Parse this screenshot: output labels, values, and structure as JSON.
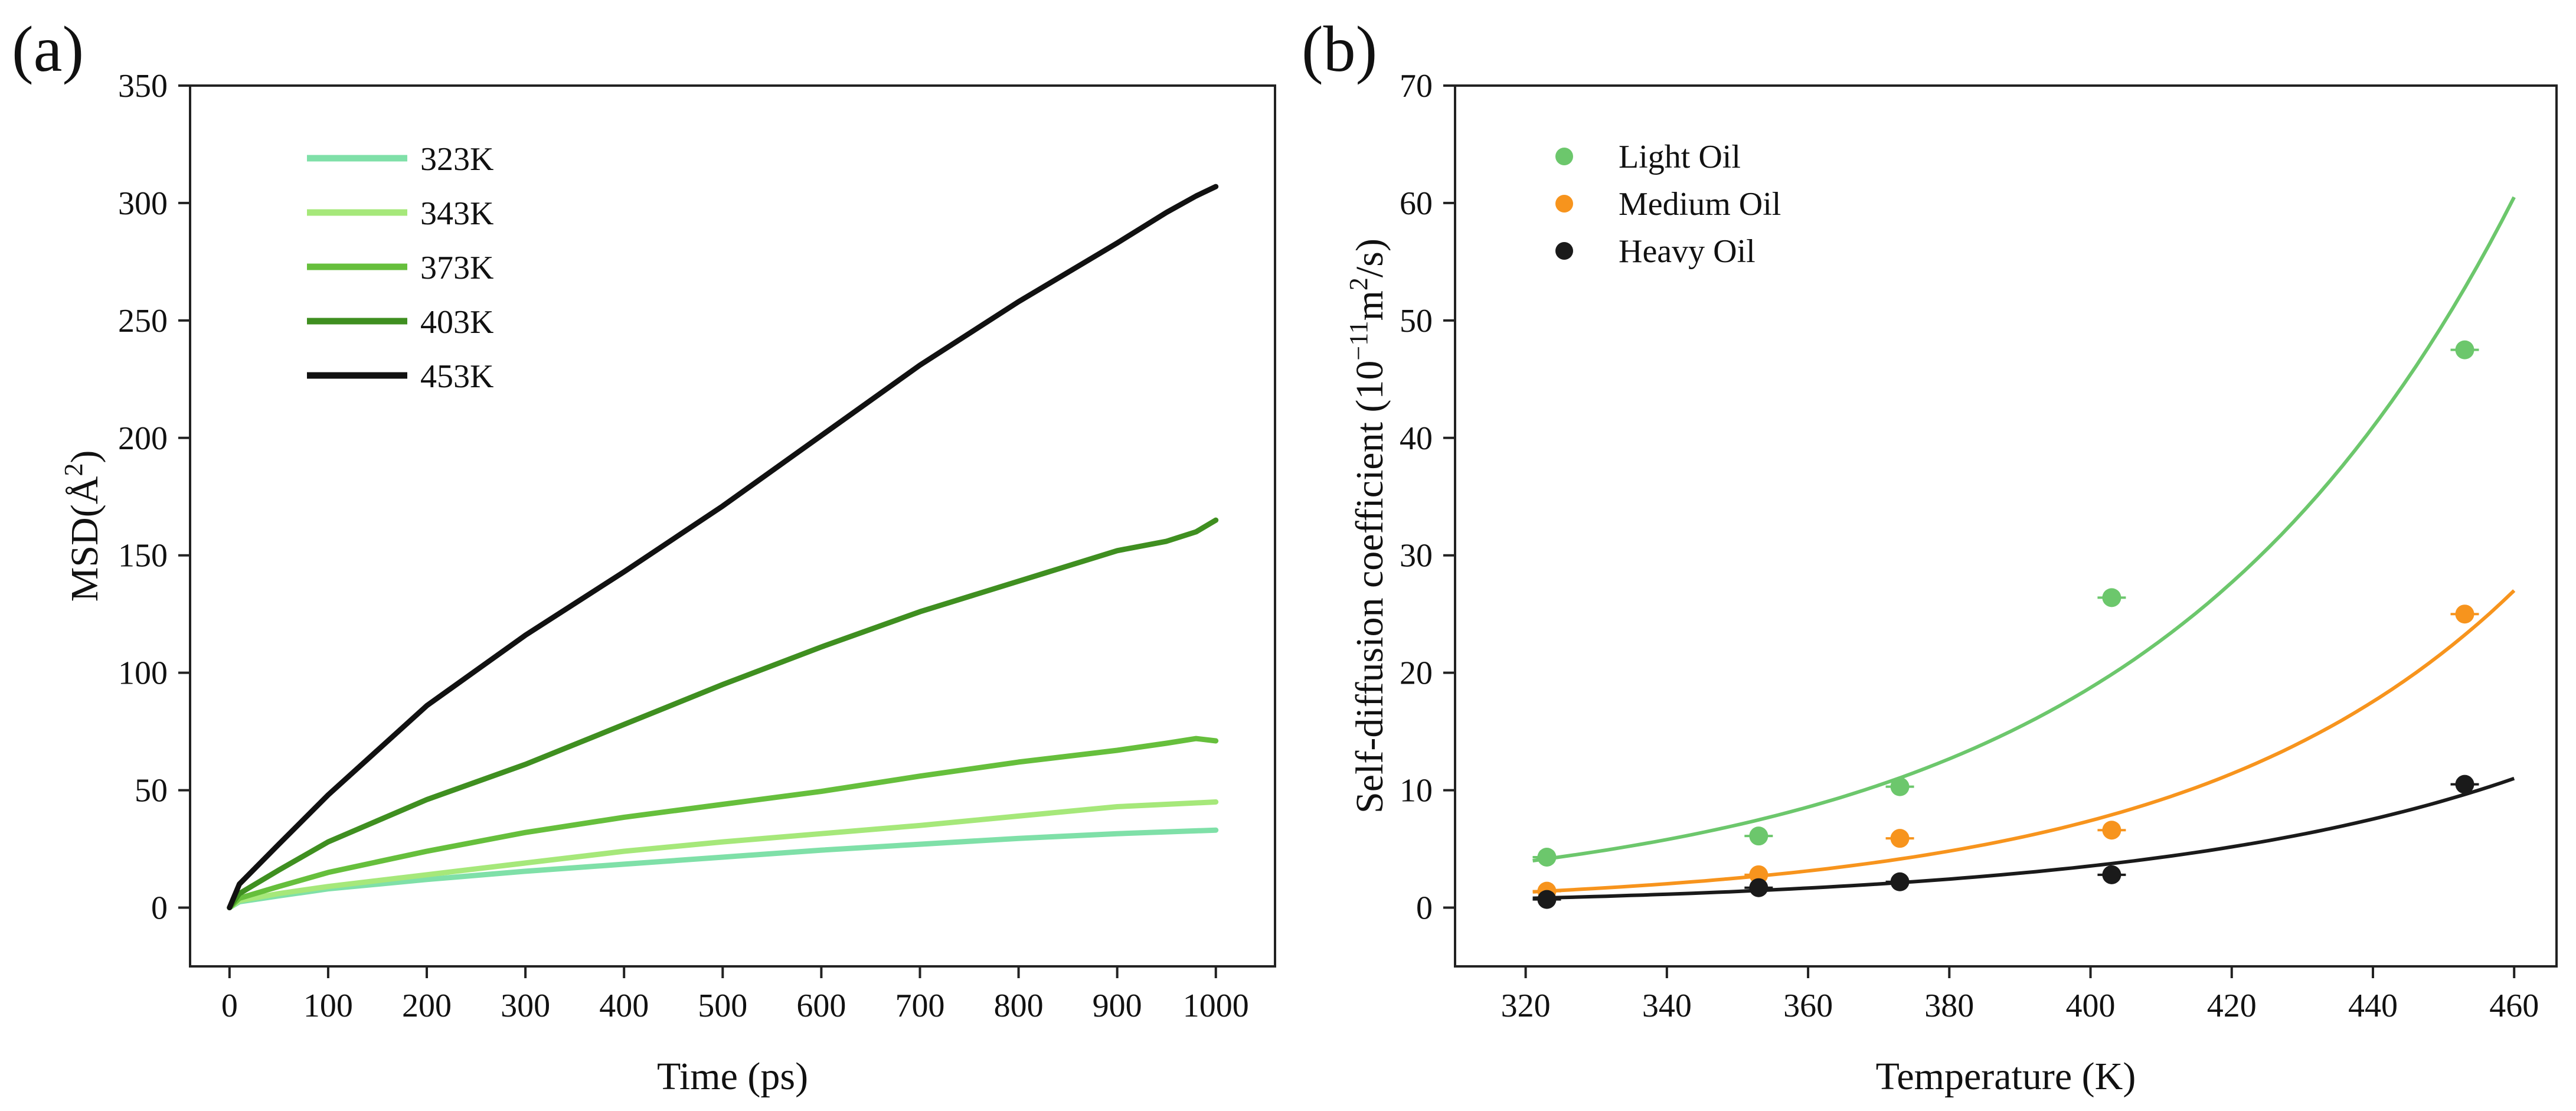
{
  "panels": {
    "a": {
      "label": "(a)"
    },
    "b": {
      "label": "(b)"
    }
  },
  "chart_data": [
    {
      "panel": "(a)",
      "type": "line",
      "title": "",
      "xlabel": "Time (ps)",
      "ylabel_text": "MSD(Å",
      "ylabel_sup": "2",
      "ylabel_tail": ")",
      "xlim": [
        -40,
        1060
      ],
      "ylim": [
        -25,
        350
      ],
      "xticks": [
        0,
        100,
        200,
        300,
        400,
        500,
        600,
        700,
        800,
        900,
        1000
      ],
      "yticks": [
        0,
        50,
        100,
        150,
        200,
        250,
        300,
        350
      ],
      "legend_position": "top-left",
      "series": [
        {
          "name": "323K",
          "color": "#7fe0a8",
          "x": [
            0,
            10,
            50,
            100,
            200,
            300,
            400,
            500,
            600,
            700,
            800,
            900,
            1000
          ],
          "y": [
            0,
            2.5,
            5,
            8,
            12,
            15.5,
            18.5,
            21.5,
            24.5,
            27,
            29.5,
            31.5,
            33
          ]
        },
        {
          "name": "343K",
          "color": "#a6e87a",
          "x": [
            0,
            10,
            50,
            100,
            200,
            300,
            400,
            500,
            600,
            700,
            800,
            900,
            1000
          ],
          "y": [
            0,
            3,
            6,
            9,
            14,
            19,
            24,
            28,
            31.5,
            35,
            39,
            43,
            45
          ]
        },
        {
          "name": "373K",
          "color": "#66bf3c",
          "x": [
            0,
            10,
            50,
            100,
            200,
            300,
            400,
            500,
            600,
            700,
            800,
            900,
            950,
            980,
            1000
          ],
          "y": [
            0,
            4,
            9,
            15,
            24,
            32,
            38.5,
            44,
            49.5,
            56,
            62,
            67,
            70,
            72,
            71
          ]
        },
        {
          "name": "403K",
          "color": "#3f8f20",
          "x": [
            0,
            10,
            50,
            100,
            200,
            300,
            400,
            500,
            600,
            700,
            800,
            900,
            950,
            980,
            1000
          ],
          "y": [
            0,
            6,
            16,
            28,
            46,
            61,
            78,
            95,
            111,
            126,
            139,
            152,
            156,
            160,
            165
          ]
        },
        {
          "name": "453K",
          "color": "#111111",
          "x": [
            0,
            10,
            50,
            100,
            200,
            300,
            400,
            500,
            600,
            700,
            800,
            900,
            950,
            980,
            1000
          ],
          "y": [
            0,
            10,
            27,
            48,
            86,
            116,
            143,
            171,
            201,
            231,
            258,
            283,
            296,
            303,
            307
          ]
        }
      ]
    },
    {
      "panel": "(b)",
      "type": "scatter",
      "title": "",
      "xlabel": "Temperature (K)",
      "ylabel_text": "Self-diffusion coefficient (10",
      "ylabel_exp": "−11",
      "ylabel_mid": "m",
      "ylabel_sup": "2",
      "ylabel_tail": "/s)",
      "xlim": [
        310,
        466
      ],
      "ylim": [
        -5,
        70
      ],
      "xticks": [
        320,
        340,
        360,
        380,
        400,
        420,
        440,
        460
      ],
      "yticks": [
        0,
        10,
        20,
        30,
        40,
        50,
        60,
        70
      ],
      "legend_position": "top-left",
      "series": [
        {
          "name": "Light Oil",
          "color": "#6cc76c",
          "points": {
            "x": [
              323,
              353,
              373,
              403,
              453
            ],
            "y": [
              4.3,
              6.1,
              10.3,
              26.4,
              47.5
            ]
          },
          "fit": {
            "x": [
              321,
              460
            ],
            "y": [
              4.0,
              60.5
            ]
          }
        },
        {
          "name": "Medium Oil",
          "color": "#f7941d",
          "points": {
            "x": [
              323,
              353,
              373,
              403,
              453
            ],
            "y": [
              1.4,
              2.8,
              5.9,
              6.6,
              25.0
            ]
          },
          "fit": {
            "x": [
              321,
              460
            ],
            "y": [
              1.35,
              27.0
            ]
          }
        },
        {
          "name": "Heavy Oil",
          "color": "#1a1a1a",
          "points": {
            "x": [
              323,
              353,
              373,
              403,
              453
            ],
            "y": [
              0.7,
              1.7,
              2.2,
              2.8,
              10.5
            ]
          },
          "fit": {
            "x": [
              321,
              460
            ],
            "y": [
              0.8,
              11.0
            ]
          }
        }
      ]
    }
  ]
}
